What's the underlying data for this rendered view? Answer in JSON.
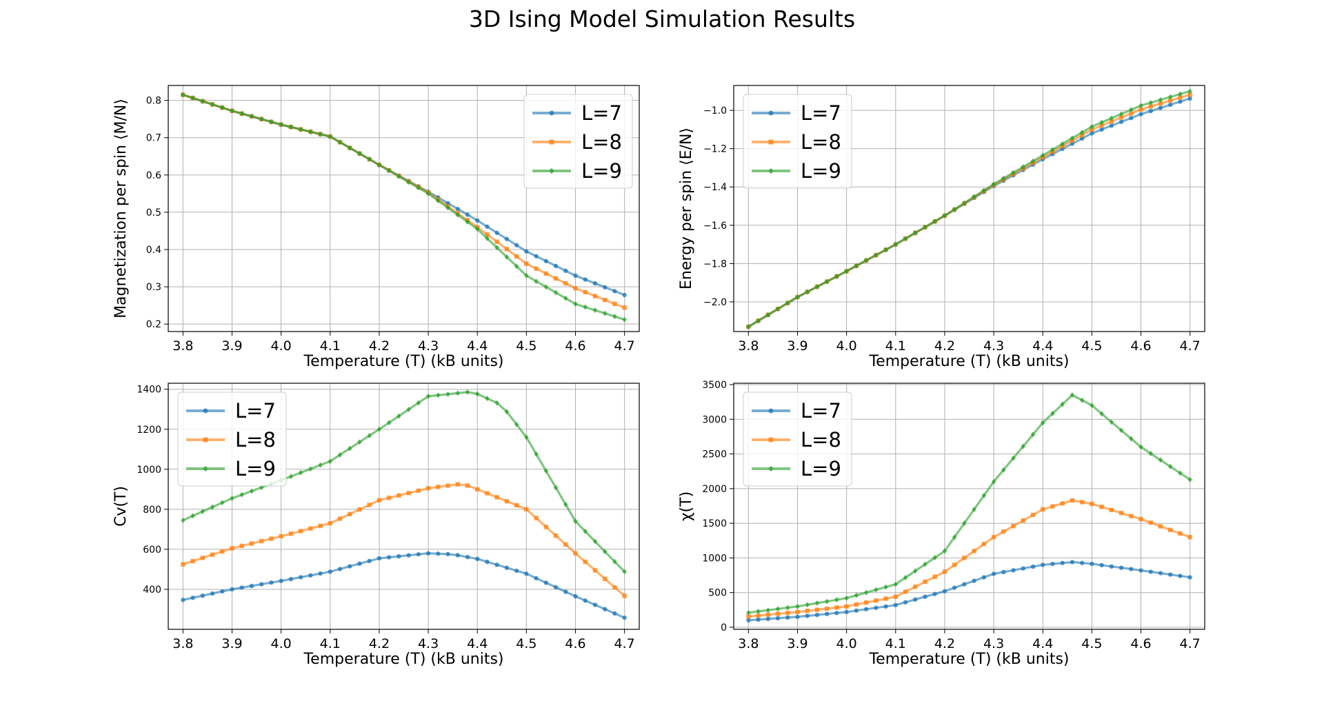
{
  "figure": {
    "title": "3D Ising Model Simulation Results"
  },
  "colors": {
    "L7": "#1f77b4",
    "L8": "#ff7f0e",
    "L9": "#2ca02c",
    "grid": "#b0b0b0"
  },
  "chart_data": [
    {
      "type": "line",
      "title": "",
      "xlabel": "Temperature (T) (kB units)",
      "ylabel": "Magnetization per spin ⟨M/N⟩",
      "xlim": [
        3.77,
        4.73
      ],
      "ylim": [
        0.18,
        0.84
      ],
      "xticks": [
        3.8,
        3.9,
        4.0,
        4.1,
        4.2,
        4.3,
        4.4,
        4.5,
        4.6,
        4.7
      ],
      "yticks": [
        0.2,
        0.3,
        0.4,
        0.5,
        0.6,
        0.7,
        0.8
      ],
      "tick_decimals": 1,
      "legend_position": "top-right",
      "grid": true,
      "x_range": [
        3.8,
        4.7
      ],
      "points": 46,
      "series": [
        {
          "name": "L=7",
          "marker": "circle",
          "anchors": [
            [
              3.8,
              0.815
            ],
            [
              3.9,
              0.772
            ],
            [
              4.0,
              0.735
            ],
            [
              4.1,
              0.703
            ],
            [
              4.2,
              0.627
            ],
            [
              4.3,
              0.555
            ],
            [
              4.4,
              0.478
            ],
            [
              4.5,
              0.395
            ],
            [
              4.6,
              0.33
            ],
            [
              4.7,
              0.278
            ]
          ]
        },
        {
          "name": "L=8",
          "marker": "square",
          "anchors": [
            [
              3.8,
              0.815
            ],
            [
              3.9,
              0.772
            ],
            [
              4.0,
              0.735
            ],
            [
              4.1,
              0.703
            ],
            [
              4.2,
              0.627
            ],
            [
              4.3,
              0.553
            ],
            [
              4.4,
              0.46
            ],
            [
              4.5,
              0.362
            ],
            [
              4.6,
              0.296
            ],
            [
              4.7,
              0.244
            ]
          ]
        },
        {
          "name": "L=9",
          "marker": "diamond",
          "anchors": [
            [
              3.8,
              0.815
            ],
            [
              3.9,
              0.772
            ],
            [
              4.0,
              0.735
            ],
            [
              4.1,
              0.703
            ],
            [
              4.2,
              0.627
            ],
            [
              4.3,
              0.55
            ],
            [
              4.4,
              0.455
            ],
            [
              4.5,
              0.33
            ],
            [
              4.6,
              0.254
            ],
            [
              4.7,
              0.212
            ]
          ]
        }
      ]
    },
    {
      "type": "line",
      "title": "",
      "xlabel": "Temperature (T) (kB units)",
      "ylabel": "Energy per spin ⟨E/N⟩",
      "xlim": [
        3.77,
        4.73
      ],
      "ylim": [
        -2.155,
        -0.87
      ],
      "xticks": [
        3.8,
        3.9,
        4.0,
        4.1,
        4.2,
        4.3,
        4.4,
        4.5,
        4.6,
        4.7
      ],
      "yticks": [
        -2.0,
        -1.8,
        -1.6,
        -1.4,
        -1.2,
        -1.0
      ],
      "tick_decimals": 1,
      "legend_position": "top-left",
      "grid": true,
      "x_range": [
        3.8,
        4.7
      ],
      "points": 46,
      "series": [
        {
          "name": "L=7",
          "marker": "circle",
          "anchors": [
            [
              3.8,
              -2.13
            ],
            [
              3.9,
              -1.975
            ],
            [
              4.0,
              -1.84
            ],
            [
              4.1,
              -1.7
            ],
            [
              4.2,
              -1.55
            ],
            [
              4.3,
              -1.395
            ],
            [
              4.4,
              -1.255
            ],
            [
              4.5,
              -1.12
            ],
            [
              4.6,
              -1.02
            ],
            [
              4.7,
              -0.938
            ]
          ]
        },
        {
          "name": "L=8",
          "marker": "square",
          "anchors": [
            [
              3.8,
              -2.13
            ],
            [
              3.9,
              -1.975
            ],
            [
              4.0,
              -1.84
            ],
            [
              4.1,
              -1.7
            ],
            [
              4.2,
              -1.55
            ],
            [
              4.3,
              -1.39
            ],
            [
              4.4,
              -1.245
            ],
            [
              4.5,
              -1.1
            ],
            [
              4.6,
              -0.995
            ],
            [
              4.7,
              -0.918
            ]
          ]
        },
        {
          "name": "L=9",
          "marker": "diamond",
          "anchors": [
            [
              3.8,
              -2.13
            ],
            [
              3.9,
              -1.975
            ],
            [
              4.0,
              -1.84
            ],
            [
              4.1,
              -1.7
            ],
            [
              4.2,
              -1.55
            ],
            [
              4.3,
              -1.385
            ],
            [
              4.4,
              -1.235
            ],
            [
              4.5,
              -1.085
            ],
            [
              4.6,
              -0.975
            ],
            [
              4.7,
              -0.9
            ]
          ]
        }
      ]
    },
    {
      "type": "line",
      "title": "",
      "xlabel": "Temperature (T) (kB units)",
      "ylabel": "Cv(T)",
      "xlim": [
        3.77,
        4.73
      ],
      "ylim": [
        200,
        1430
      ],
      "xticks": [
        3.8,
        3.9,
        4.0,
        4.1,
        4.2,
        4.3,
        4.4,
        4.5,
        4.6,
        4.7
      ],
      "yticks": [
        400,
        600,
        800,
        1000,
        1200,
        1400
      ],
      "tick_decimals": 0,
      "legend_position": "top-left",
      "grid": true,
      "x_range": [
        3.8,
        4.7
      ],
      "points": 46,
      "series": [
        {
          "name": "L=7",
          "marker": "circle",
          "anchors": [
            [
              3.8,
              347
            ],
            [
              3.9,
              400
            ],
            [
              4.0,
              442
            ],
            [
              4.1,
              488
            ],
            [
              4.2,
              555
            ],
            [
              4.3,
              580
            ],
            [
              4.35,
              575
            ],
            [
              4.4,
              552
            ],
            [
              4.5,
              478
            ],
            [
              4.6,
              365
            ],
            [
              4.7,
              258
            ]
          ]
        },
        {
          "name": "L=8",
          "marker": "square",
          "anchors": [
            [
              3.8,
              525
            ],
            [
              3.9,
              605
            ],
            [
              4.0,
              665
            ],
            [
              4.1,
              730
            ],
            [
              4.2,
              845
            ],
            [
              4.3,
              905
            ],
            [
              4.37,
              928
            ],
            [
              4.4,
              900
            ],
            [
              4.5,
              800
            ],
            [
              4.6,
              580
            ],
            [
              4.7,
              367
            ]
          ]
        },
        {
          "name": "L=9",
          "marker": "diamond",
          "anchors": [
            [
              3.8,
              745
            ],
            [
              3.9,
              855
            ],
            [
              4.0,
              945
            ],
            [
              4.1,
              1040
            ],
            [
              4.2,
              1200
            ],
            [
              4.3,
              1365
            ],
            [
              4.39,
              1388
            ],
            [
              4.45,
              1320
            ],
            [
              4.5,
              1160
            ],
            [
              4.6,
              740
            ],
            [
              4.7,
              488
            ]
          ]
        }
      ]
    },
    {
      "type": "line",
      "title": "",
      "xlabel": "Temperature (T) (kB units)",
      "ylabel": "χ(T)",
      "xlim": [
        3.77,
        4.73
      ],
      "ylim": [
        -30,
        3520
      ],
      "xticks": [
        3.8,
        3.9,
        4.0,
        4.1,
        4.2,
        4.3,
        4.4,
        4.5,
        4.6,
        4.7
      ],
      "yticks": [
        0,
        500,
        1000,
        1500,
        2000,
        2500,
        3000,
        3500
      ],
      "tick_decimals": 0,
      "legend_position": "top-left",
      "grid": true,
      "x_range": [
        3.8,
        4.7
      ],
      "points": 46,
      "series": [
        {
          "name": "L=7",
          "marker": "circle",
          "anchors": [
            [
              3.8,
              100
            ],
            [
              3.9,
              150
            ],
            [
              4.0,
              220
            ],
            [
              4.1,
              320
            ],
            [
              4.2,
              520
            ],
            [
              4.3,
              770
            ],
            [
              4.4,
              900
            ],
            [
              4.46,
              940
            ],
            [
              4.5,
              915
            ],
            [
              4.6,
              820
            ],
            [
              4.7,
              720
            ]
          ]
        },
        {
          "name": "L=8",
          "marker": "square",
          "anchors": [
            [
              3.8,
              155
            ],
            [
              3.9,
              220
            ],
            [
              4.0,
              300
            ],
            [
              4.1,
              440
            ],
            [
              4.2,
              800
            ],
            [
              4.3,
              1300
            ],
            [
              4.4,
              1700
            ],
            [
              4.46,
              1830
            ],
            [
              4.5,
              1780
            ],
            [
              4.6,
              1560
            ],
            [
              4.7,
              1300
            ]
          ]
        },
        {
          "name": "L=9",
          "marker": "diamond",
          "anchors": [
            [
              3.8,
              210
            ],
            [
              3.9,
              300
            ],
            [
              4.0,
              420
            ],
            [
              4.1,
              620
            ],
            [
              4.2,
              1100
            ],
            [
              4.3,
              2100
            ],
            [
              4.4,
              2950
            ],
            [
              4.46,
              3350
            ],
            [
              4.5,
              3200
            ],
            [
              4.6,
              2600
            ],
            [
              4.7,
              2130
            ]
          ]
        }
      ]
    }
  ]
}
